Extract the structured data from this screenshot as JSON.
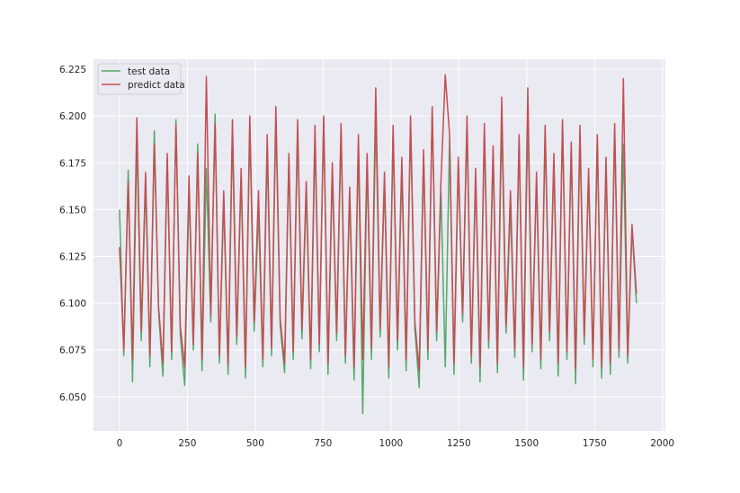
{
  "chart_data": {
    "type": "line",
    "title": "",
    "xlabel": "",
    "ylabel": "",
    "xlim": [
      -95.75,
      2010.75
    ],
    "ylim": [
      6.0317,
      6.2303
    ],
    "grid": true,
    "legend_position": "top-left",
    "background": "#eaeaf2",
    "x_ticks": [
      "0",
      "250",
      "500",
      "750",
      "1000",
      "1250",
      "1500",
      "1750",
      "2000"
    ],
    "x_tick_values": [
      0,
      250,
      500,
      750,
      1000,
      1250,
      1500,
      1750,
      2000
    ],
    "y_ticks": [
      "6.050",
      "6.075",
      "6.100",
      "6.125",
      "6.150",
      "6.175",
      "6.200",
      "6.225"
    ],
    "y_tick_values": [
      6.05,
      6.075,
      6.1,
      6.125,
      6.15,
      6.175,
      6.2,
      6.225
    ],
    "x_start": 0,
    "x_step": 16,
    "series": [
      {
        "name": "test data",
        "color": "#55a868",
        "values": [
          6.15,
          6.072,
          6.171,
          6.058,
          6.188,
          6.08,
          6.165,
          6.066,
          6.192,
          6.095,
          6.061,
          6.177,
          6.07,
          6.198,
          6.083,
          6.056,
          6.16,
          6.075,
          6.185,
          6.064,
          6.172,
          6.09,
          6.201,
          6.068,
          6.155,
          6.062,
          6.19,
          6.078,
          6.168,
          6.06,
          6.195,
          6.085,
          6.15,
          6.066,
          6.182,
          6.072,
          6.198,
          6.088,
          6.063,
          6.176,
          6.07,
          6.193,
          6.081,
          6.16,
          6.065,
          6.188,
          6.074,
          6.199,
          6.062,
          6.17,
          6.08,
          6.192,
          6.068,
          6.158,
          6.059,
          6.185,
          6.041,
          6.175,
          6.07,
          6.2,
          6.082,
          6.165,
          6.06,
          6.19,
          6.075,
          6.172,
          6.064,
          6.196,
          6.086,
          6.055,
          6.178,
          6.07,
          6.203,
          6.08,
          6.16,
          6.066,
          6.188,
          6.062,
          6.174,
          6.09,
          6.195,
          6.068,
          6.168,
          6.058,
          6.192,
          6.076,
          6.18,
          6.063,
          6.198,
          6.084,
          6.152,
          6.071,
          6.186,
          6.059,
          6.2,
          6.074,
          6.166,
          6.065,
          6.191,
          6.08,
          6.176,
          6.061,
          6.197,
          6.07,
          6.183,
          6.057,
          6.19,
          6.078,
          6.169,
          6.066,
          6.188,
          6.06,
          6.175,
          6.062,
          6.193,
          6.071,
          6.185,
          6.068,
          6.14,
          6.1
        ]
      },
      {
        "name": "predict data",
        "color": "#c44e52",
        "values": [
          6.13,
          6.075,
          6.165,
          6.07,
          6.199,
          6.085,
          6.17,
          6.072,
          6.185,
          6.098,
          6.068,
          6.18,
          6.074,
          6.195,
          6.088,
          6.066,
          6.168,
          6.078,
          6.18,
          6.07,
          6.221,
          6.094,
          6.196,
          6.072,
          6.16,
          6.067,
          6.198,
          6.082,
          6.172,
          6.066,
          6.2,
          6.09,
          6.16,
          6.07,
          6.19,
          6.076,
          6.205,
          6.092,
          6.068,
          6.18,
          6.074,
          6.198,
          6.086,
          6.165,
          6.07,
          6.195,
          6.078,
          6.2,
          6.068,
          6.175,
          6.084,
          6.196,
          6.072,
          6.162,
          6.066,
          6.19,
          6.07,
          6.18,
          6.076,
          6.215,
          6.086,
          6.17,
          6.066,
          6.195,
          6.08,
          6.178,
          6.07,
          6.2,
          6.09,
          6.064,
          6.182,
          6.075,
          6.205,
          6.085,
          6.165,
          6.222,
          6.19,
          6.068,
          6.178,
          6.094,
          6.2,
          6.072,
          6.172,
          6.066,
          6.196,
          6.08,
          6.184,
          6.068,
          6.21,
          6.088,
          6.16,
          6.075,
          6.19,
          6.066,
          6.215,
          6.078,
          6.17,
          6.07,
          6.195,
          6.085,
          6.18,
          6.068,
          6.198,
          6.074,
          6.186,
          6.065,
          6.195,
          6.082,
          6.172,
          6.07,
          6.19,
          6.066,
          6.178,
          6.068,
          6.196,
          6.075,
          6.22,
          6.072,
          6.142,
          6.105
        ]
      }
    ]
  }
}
